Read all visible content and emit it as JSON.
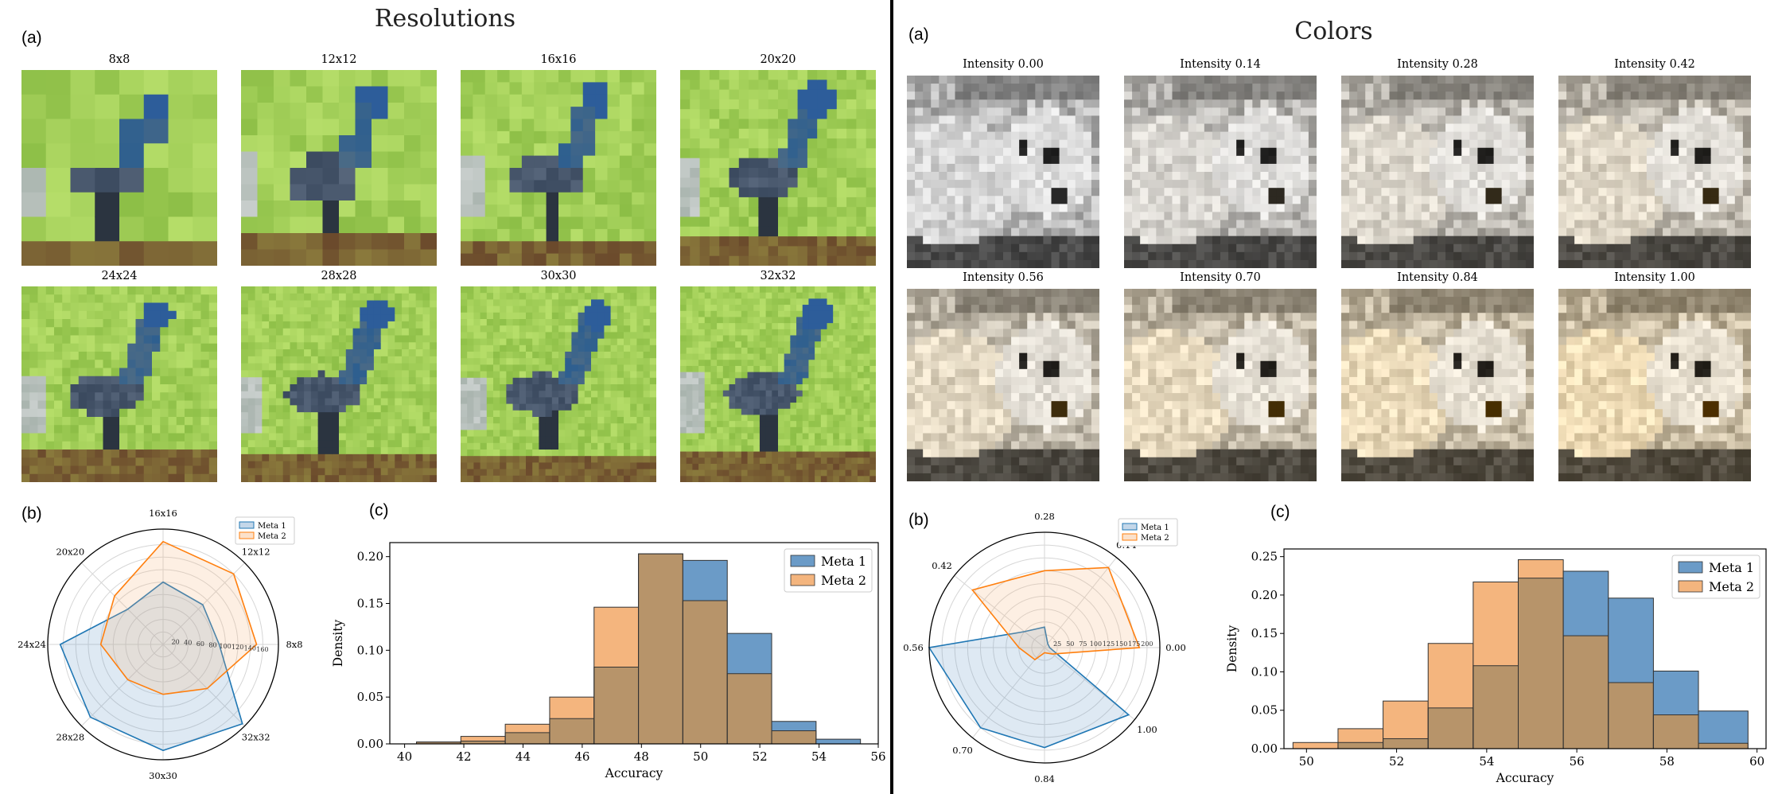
{
  "left": {
    "title": "Resolutions",
    "label_a": "(a)",
    "label_b": "(b)",
    "label_c": "(c)",
    "tiles": [
      "8x8",
      "12x12",
      "16x16",
      "20x20",
      "24x24",
      "28x28",
      "30x30",
      "32x32"
    ],
    "tile_image": "pixelated-bird-image"
  },
  "right": {
    "title": "Colors",
    "label_a": "(a)",
    "label_b": "(b)",
    "label_c": "(c)",
    "tiles": [
      "Intensity 0.00",
      "Intensity 0.14",
      "Intensity 0.28",
      "Intensity 0.42",
      "Intensity 0.56",
      "Intensity 0.70",
      "Intensity 0.84",
      "Intensity 1.00"
    ],
    "tile_image": "color-intensity-dog-image"
  },
  "colors": {
    "meta1": "#1f77b4",
    "meta1_fill": "#6b9bc7",
    "meta2": "#ff7f0e",
    "meta2_fill": "#f4b57e",
    "overlap": "#b7946a"
  },
  "chart_data": [
    {
      "id": "left-radar",
      "type": "radar",
      "axes": [
        "16x16",
        "12x12",
        "8x8",
        "32x32",
        "30x30",
        "28x28",
        "24x24",
        "20x20"
      ],
      "ticks": [
        20,
        40,
        60,
        80,
        100,
        120,
        140,
        160
      ],
      "rmax": 185,
      "series": [
        {
          "name": "Meta 1",
          "values": [
            100,
            90,
            90,
            180,
            170,
            165,
            165,
            80
          ]
        },
        {
          "name": "Meta 2",
          "values": [
            165,
            160,
            150,
            100,
            80,
            80,
            100,
            110
          ]
        }
      ],
      "legend": "top-right"
    },
    {
      "id": "left-hist",
      "type": "histogram",
      "xlabel": "Accuracy",
      "ylabel": "Density",
      "xlim": [
        39.5,
        56
      ],
      "ylim": [
        0,
        0.215
      ],
      "xticks": [
        40,
        42,
        44,
        46,
        48,
        50,
        52,
        54,
        56
      ],
      "yticks": [
        "0.00",
        "0.05",
        "0.10",
        "0.15",
        "0.20"
      ],
      "bins": [
        40.4,
        41.9,
        43.4,
        44.9,
        46.4,
        47.9,
        49.4,
        50.9,
        52.4,
        53.9,
        55.4
      ],
      "series": [
        {
          "name": "Meta 1",
          "values": [
            0.002,
            0.003,
            0.012,
            0.027,
            0.082,
            0.203,
            0.196,
            0.118,
            0.024,
            0.005
          ]
        },
        {
          "name": "Meta 2",
          "values": [
            0.002,
            0.008,
            0.021,
            0.05,
            0.146,
            0.203,
            0.153,
            0.075,
            0.014,
            0.0
          ]
        }
      ],
      "legend": "top-right"
    },
    {
      "id": "right-radar",
      "type": "radar",
      "axes": [
        "0.00",
        "0.14",
        "0.28",
        "0.42",
        "0.56",
        "0.70",
        "0.84",
        "1.00"
      ],
      "angles_deg": [
        0,
        51.4,
        90,
        141.4,
        180,
        231.4,
        270,
        321.4
      ],
      "ticks": [
        25,
        50,
        75,
        100,
        125,
        150,
        175,
        200
      ],
      "rmax": 225,
      "series": [
        {
          "name": "Meta 1",
          "values": [
            10,
            10,
            40,
            50,
            225,
            200,
            195,
            210
          ]
        },
        {
          "name": "Meta 2",
          "values": [
            185,
            200,
            150,
            180,
            50,
            30,
            10,
            20
          ]
        }
      ],
      "legend": "top-right"
    },
    {
      "id": "right-hist",
      "type": "histogram",
      "xlabel": "Accuracy",
      "ylabel": "Density",
      "xlim": [
        49.5,
        60.2
      ],
      "ylim": [
        0,
        0.26
      ],
      "xticks": [
        50,
        52,
        54,
        56,
        58,
        60
      ],
      "yticks": [
        "0.00",
        "0.05",
        "0.10",
        "0.15",
        "0.20",
        "0.25"
      ],
      "bins": [
        49.7,
        50.7,
        51.7,
        52.7,
        53.7,
        54.7,
        55.7,
        56.7,
        57.7,
        58.7,
        59.8
      ],
      "series": [
        {
          "name": "Meta 1",
          "values": [
            0.0,
            0.008,
            0.013,
            0.053,
            0.108,
            0.222,
            0.231,
            0.196,
            0.101,
            0.049
          ]
        },
        {
          "name": "Meta 2",
          "values": [
            0.008,
            0.026,
            0.062,
            0.137,
            0.217,
            0.246,
            0.147,
            0.086,
            0.044,
            0.007
          ]
        }
      ],
      "legend": "top-right"
    }
  ]
}
